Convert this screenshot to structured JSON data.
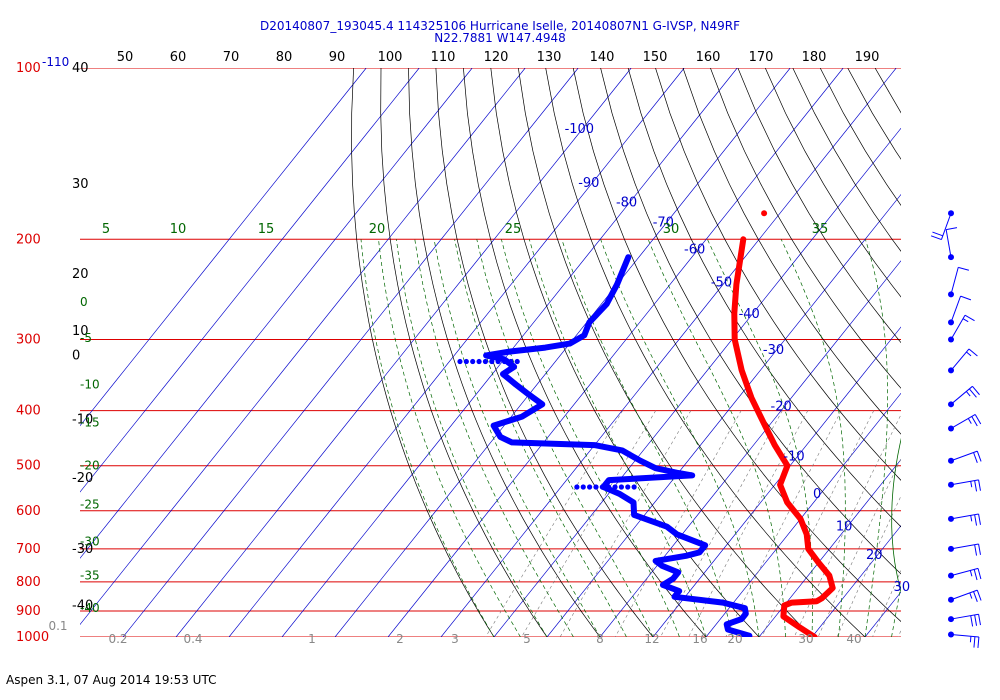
{
  "header": {
    "title_line1": "D20140807_193045.4 114325106 Hurricane Iselle, 20140807N1 G-IVSP, N49RF",
    "title_line2": "N22.7881 W147.4948"
  },
  "footer": {
    "text": "Aspen 3.1, 07 Aug 2014  19:53 UTC"
  },
  "colors": {
    "pressure_lines": "#dd0000",
    "isotherms": "#0000cc",
    "dry_adiabats": "#000000",
    "moist_adiabats": "#006600",
    "mixing_ratio": "#777777",
    "temperature": "#ff0000",
    "dewpoint": "#0000ff"
  },
  "chart_data": {
    "type": "skew-t",
    "pressure_levels": [
      {
        "label": "100",
        "p": 100
      },
      {
        "label": "200",
        "p": 200
      },
      {
        "label": "300",
        "p": 300
      },
      {
        "label": "400",
        "p": 400
      },
      {
        "label": "500",
        "p": 500
      },
      {
        "label": "600",
        "p": 600
      },
      {
        "label": "700",
        "p": 700
      },
      {
        "label": "800",
        "p": 800
      },
      {
        "label": "900",
        "p": 900
      },
      {
        "label": "1000",
        "p": 1000
      }
    ],
    "left_black_labels": [
      {
        "label": "40",
        "p": 100
      },
      {
        "label": "30",
        "p": 160
      },
      {
        "label": "20",
        "p": 230
      },
      {
        "label": "10",
        "p": 290
      },
      {
        "label": "0",
        "p": 320
      },
      {
        "label": "-10",
        "p": 415
      },
      {
        "label": "-20",
        "p": 525
      },
      {
        "label": "-30",
        "p": 700
      },
      {
        "label": "-40",
        "p": 880
      }
    ],
    "top_temperature_labels": [
      "50",
      "60",
      "70",
      "80",
      "90",
      "100",
      "110",
      "120",
      "130",
      "140",
      "150",
      "160",
      "170",
      "180",
      "190"
    ],
    "top_label_110": "-110",
    "isotherm_labels": [
      {
        "label": "-100",
        "t": -100,
        "p": 130
      },
      {
        "label": "-90",
        "t": -90,
        "p": 162
      },
      {
        "label": "-80",
        "t": -80,
        "p": 175
      },
      {
        "label": "-70",
        "t": -70,
        "p": 190
      },
      {
        "label": "-60",
        "t": -60,
        "p": 212
      },
      {
        "label": "-50",
        "t": -50,
        "p": 242
      },
      {
        "label": "-40",
        "t": -40,
        "p": 275
      },
      {
        "label": "-30",
        "t": -30,
        "p": 318
      },
      {
        "label": "-20",
        "t": -20,
        "p": 400
      },
      {
        "label": "-10",
        "t": -10,
        "p": 490
      },
      {
        "label": "0",
        "t": 0,
        "p": 570
      },
      {
        "label": "10",
        "t": 10,
        "p": 650
      },
      {
        "label": "20",
        "t": 20,
        "p": 730
      },
      {
        "label": "30",
        "t": 30,
        "p": 830
      }
    ],
    "moist_adiabat_top_labels": [
      "5",
      "10",
      "15",
      "20",
      "25",
      "30",
      "35"
    ],
    "moist_adiabat_left_labels": [
      {
        "label": "0",
        "p": 258
      },
      {
        "label": "-5",
        "p": 298
      },
      {
        "label": "-10",
        "p": 360
      },
      {
        "label": "-15",
        "p": 420
      },
      {
        "label": "-20",
        "p": 500
      },
      {
        "label": "-25",
        "p": 585
      },
      {
        "label": "-30",
        "p": 680
      },
      {
        "label": "-35",
        "p": 780
      },
      {
        "label": "-40",
        "p": 890
      }
    ],
    "mixing_ratio_labels": [
      "0.1",
      "0.2",
      "0.4",
      "1",
      "2",
      "3",
      "5",
      "8",
      "12",
      "16",
      "20",
      "30",
      "40"
    ],
    "temperature_profile": [
      {
        "p": 200,
        "t": -53
      },
      {
        "p": 240,
        "t": -47.5
      },
      {
        "p": 270,
        "t": -43.5
      },
      {
        "p": 300,
        "t": -39.5
      },
      {
        "p": 340,
        "t": -33.5
      },
      {
        "p": 380,
        "t": -27.5
      },
      {
        "p": 420,
        "t": -21.5
      },
      {
        "p": 460,
        "t": -16
      },
      {
        "p": 500,
        "t": -10.5
      },
      {
        "p": 540,
        "t": -9
      },
      {
        "p": 580,
        "t": -5
      },
      {
        "p": 620,
        "t": 0
      },
      {
        "p": 660,
        "t": 3.5
      },
      {
        "p": 700,
        "t": 6
      },
      {
        "p": 740,
        "t": 10
      },
      {
        "p": 780,
        "t": 14
      },
      {
        "p": 820,
        "t": 16.5
      },
      {
        "p": 855,
        "t": 16
      },
      {
        "p": 865,
        "t": 15.5
      },
      {
        "p": 870,
        "t": 11
      },
      {
        "p": 880,
        "t": 10
      },
      {
        "p": 920,
        "t": 11.5
      },
      {
        "p": 960,
        "t": 16
      },
      {
        "p": 1000,
        "t": 20.5
      }
    ],
    "temperature_isolated_point": {
      "p": 180,
      "t": -53
    },
    "dewpoint_profile": [
      {
        "p": 215,
        "t": -72
      },
      {
        "p": 240,
        "t": -70
      },
      {
        "p": 260,
        "t": -69
      },
      {
        "p": 280,
        "t": -69.5
      },
      {
        "p": 295,
        "t": -68.5
      },
      {
        "p": 305,
        "t": -70
      },
      {
        "p": 310,
        "t": -74
      },
      {
        "p": 315,
        "t": -80
      },
      {
        "p": 320,
        "t": -84
      },
      {
        "p": 325,
        "t": -80
      },
      {
        "p": 335,
        "t": -77
      },
      {
        "p": 345,
        "t": -78
      },
      {
        "p": 360,
        "t": -74
      },
      {
        "p": 375,
        "t": -70
      },
      {
        "p": 390,
        "t": -66
      },
      {
        "p": 410,
        "t": -68
      },
      {
        "p": 425,
        "t": -72
      },
      {
        "p": 445,
        "t": -69
      },
      {
        "p": 455,
        "t": -66
      },
      {
        "p": 460,
        "t": -50
      },
      {
        "p": 470,
        "t": -44
      },
      {
        "p": 490,
        "t": -39
      },
      {
        "p": 505,
        "t": -35
      },
      {
        "p": 515,
        "t": -30
      },
      {
        "p": 520,
        "t": -27
      },
      {
        "p": 530,
        "t": -42
      },
      {
        "p": 545,
        "t": -42
      },
      {
        "p": 560,
        "t": -38
      },
      {
        "p": 580,
        "t": -34
      },
      {
        "p": 610,
        "t": -32
      },
      {
        "p": 640,
        "t": -24
      },
      {
        "p": 660,
        "t": -21
      },
      {
        "p": 690,
        "t": -14
      },
      {
        "p": 710,
        "t": -14
      },
      {
        "p": 720,
        "t": -16
      },
      {
        "p": 735,
        "t": -21
      },
      {
        "p": 750,
        "t": -19
      },
      {
        "p": 770,
        "t": -15
      },
      {
        "p": 790,
        "t": -15
      },
      {
        "p": 810,
        "t": -16
      },
      {
        "p": 830,
        "t": -12
      },
      {
        "p": 850,
        "t": -12
      },
      {
        "p": 870,
        "t": -2
      },
      {
        "p": 890,
        "t": 3
      },
      {
        "p": 910,
        "t": 4
      },
      {
        "p": 930,
        "t": 4
      },
      {
        "p": 950,
        "t": 2
      },
      {
        "p": 970,
        "t": 3
      },
      {
        "p": 995,
        "t": 8
      }
    ],
    "dewpoint_dotted_segments": [
      {
        "p": 328,
        "t_start": -88,
        "t_end": -77
      },
      {
        "p": 545,
        "t_start": -47,
        "t_end": -36
      }
    ],
    "wind_barbs": [
      {
        "p": 180,
        "dir": 200,
        "spd": 20
      },
      {
        "p": 215,
        "dir": 350,
        "spd": 10
      },
      {
        "p": 250,
        "dir": 15,
        "spd": 10
      },
      {
        "p": 280,
        "dir": 20,
        "spd": 10
      },
      {
        "p": 300,
        "dir": 30,
        "spd": 15
      },
      {
        "p": 340,
        "dir": 40,
        "spd": 15
      },
      {
        "p": 390,
        "dir": 50,
        "spd": 25
      },
      {
        "p": 430,
        "dir": 60,
        "spd": 25
      },
      {
        "p": 490,
        "dir": 70,
        "spd": 20
      },
      {
        "p": 540,
        "dir": 80,
        "spd": 25
      },
      {
        "p": 620,
        "dir": 80,
        "spd": 25
      },
      {
        "p": 700,
        "dir": 80,
        "spd": 20
      },
      {
        "p": 780,
        "dir": 75,
        "spd": 25
      },
      {
        "p": 860,
        "dir": 70,
        "spd": 25
      },
      {
        "p": 930,
        "dir": 80,
        "spd": 30
      },
      {
        "p": 990,
        "dir": 95,
        "spd": 25
      }
    ]
  }
}
